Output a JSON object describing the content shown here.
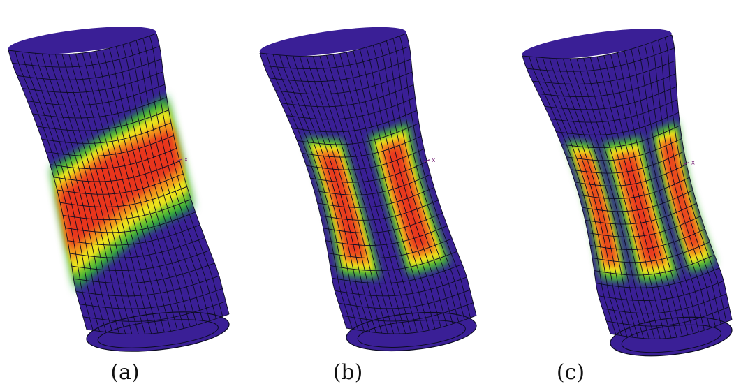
{
  "figure": {
    "colors": {
      "background": "#3a1f96",
      "mesh": "#0c0c22",
      "green": "#1ea83a",
      "light_green": "#8fcd2a",
      "yellow": "#ece21a",
      "orange": "#f2a21a",
      "red": "#e8361e",
      "axis_marker": "#7a2a7a"
    },
    "panels": [
      {
        "id": "a",
        "caption": "(a)",
        "axis_label": "x",
        "pattern": "diagonal-band"
      },
      {
        "id": "b",
        "caption": "(b)",
        "axis_label": "x",
        "pattern": "two-vertical-bands"
      },
      {
        "id": "c",
        "caption": "(c)",
        "axis_label": "x",
        "pattern": "three-vertical-bands"
      }
    ]
  }
}
